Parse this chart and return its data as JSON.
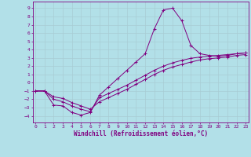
{
  "background_color": "#b2e0e8",
  "line_color": "#800080",
  "xlabel": "Windchill (Refroidissement éolien,°C)",
  "x_ticks": [
    0,
    1,
    2,
    3,
    4,
    5,
    6,
    7,
    8,
    9,
    10,
    11,
    12,
    13,
    14,
    15,
    16,
    17,
    18,
    19,
    20,
    21,
    22,
    23
  ],
  "y_ticks": [
    -4,
    -3,
    -2,
    -1,
    0,
    1,
    2,
    3,
    4,
    5,
    6,
    7,
    8,
    9
  ],
  "ylim": [
    -4.8,
    9.8
  ],
  "xlim": [
    -0.3,
    23.3
  ],
  "curve1_x": [
    0,
    1,
    2,
    3,
    4,
    5,
    6,
    7,
    8,
    9,
    10,
    11,
    12,
    13,
    14,
    15,
    16,
    17,
    18,
    19,
    20,
    21,
    22,
    23
  ],
  "curve1_y": [
    -1.0,
    -1.0,
    -2.7,
    -2.8,
    -3.6,
    -3.9,
    -3.6,
    -1.5,
    -0.5,
    0.5,
    1.5,
    2.5,
    3.5,
    6.5,
    8.8,
    9.0,
    7.5,
    4.5,
    3.5,
    3.3,
    3.2,
    3.3,
    3.5,
    3.6
  ],
  "curve2_x": [
    0,
    1,
    2,
    3,
    4,
    5,
    6,
    7,
    8,
    9,
    10,
    11,
    12,
    13,
    14,
    15,
    16,
    17,
    18,
    19,
    20,
    21,
    22,
    23
  ],
  "curve2_y": [
    -1.0,
    -1.0,
    -2.0,
    -2.3,
    -2.8,
    -3.2,
    -3.5,
    -1.8,
    -1.3,
    -0.8,
    -0.3,
    0.3,
    0.9,
    1.5,
    2.0,
    2.4,
    2.7,
    2.95,
    3.1,
    3.2,
    3.3,
    3.4,
    3.5,
    3.6
  ],
  "curve3_x": [
    0,
    1,
    2,
    3,
    4,
    5,
    6,
    7,
    8,
    9,
    10,
    11,
    12,
    13,
    14,
    15,
    16,
    17,
    18,
    19,
    20,
    21,
    22,
    23
  ],
  "curve3_y": [
    -1.0,
    -1.0,
    -1.7,
    -1.9,
    -2.4,
    -2.8,
    -3.2,
    -2.3,
    -1.8,
    -1.3,
    -0.8,
    -0.2,
    0.4,
    1.0,
    1.5,
    1.9,
    2.2,
    2.5,
    2.75,
    2.9,
    3.0,
    3.1,
    3.3,
    3.4
  ],
  "grid_color": "#a8cdd4",
  "tick_fontsize": 4.5,
  "xlabel_fontsize": 5.5,
  "lw": 0.7,
  "markersize": 2.5
}
